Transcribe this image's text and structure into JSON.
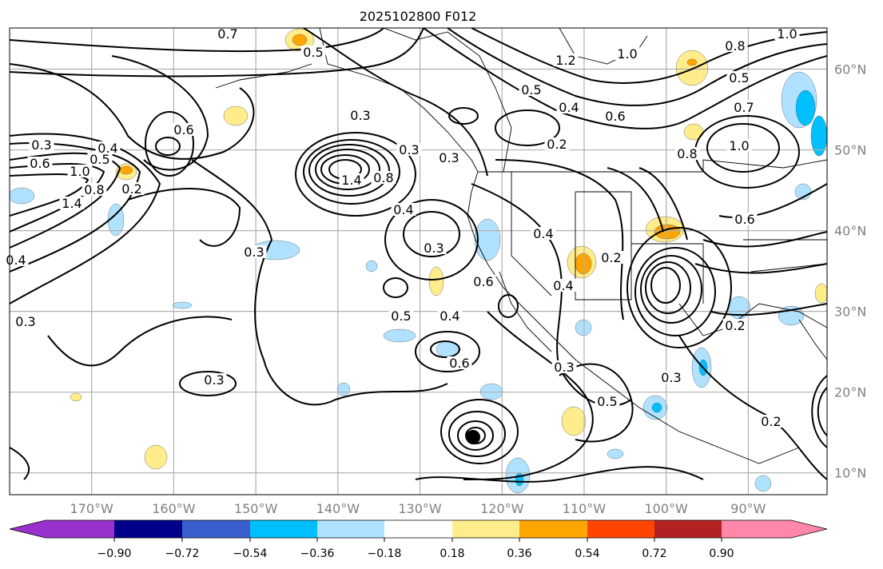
{
  "chart_data": {
    "type": "heatmap",
    "title": "2025102800 F012",
    "projection": "lat-lon map, North Pacific / North America",
    "lon_range": [
      -180,
      -80.4
    ],
    "lat_range": [
      7.3,
      65.1
    ],
    "x_ticks": [
      -170,
      -160,
      -150,
      -140,
      -130,
      -120,
      -110,
      -100,
      -90
    ],
    "x_tick_labels": [
      "170°W",
      "160°W",
      "150°W",
      "140°W",
      "130°W",
      "120°W",
      "110°W",
      "100°W",
      "90°W"
    ],
    "y_ticks": [
      60,
      50,
      40,
      30,
      20,
      10
    ],
    "y_tick_labels": [
      "60°N",
      "50°N",
      "40°N",
      "30°N",
      "20°N",
      "10°N"
    ],
    "grid": true,
    "colorbar": {
      "placement": "bottom",
      "extend": "both",
      "levels": [
        -0.9,
        -0.72,
        -0.54,
        -0.36,
        -0.18,
        0.18,
        0.36,
        0.54,
        0.72,
        0.9
      ],
      "level_labels": [
        "−0.90",
        "−0.72",
        "−0.54",
        "−0.36",
        "−0.18",
        "0.18",
        "0.36",
        "0.54",
        "0.72",
        "0.90"
      ],
      "colors": [
        "#9932cc",
        "#00008b",
        "#3a5fcd",
        "#00bfff",
        "#b0e2ff",
        "#ffffff",
        "#ffec8b",
        "#ffa500",
        "#ff4500",
        "#b22222",
        "#ff88aa"
      ]
    },
    "contour_labels": [
      "0.7",
      "0.5",
      "0.3",
      "0.3",
      "0.4",
      "0.5",
      "0.6",
      "1.0",
      "0.8",
      "0.2",
      "1.4",
      "0.6",
      "0.4",
      "0.3",
      "1.4",
      "0.8",
      "0.3",
      "0.4",
      "0.3",
      "0.5",
      "0.4",
      "0.6",
      "0.3",
      "0.3",
      "0.5",
      "0.6",
      "0.4",
      "0.4",
      "0.2",
      "0.2",
      "0.5",
      "0.4",
      "0.6",
      "1.2",
      "1.0",
      "1.0",
      "0.7",
      "0.8",
      "1.0",
      "0.5",
      "0.6",
      "0.8",
      "0.2",
      "0.3",
      "0.2",
      "0.3",
      "0.3"
    ],
    "marker": {
      "lon": -123,
      "lat": 14.6,
      "label": "storm center"
    }
  }
}
